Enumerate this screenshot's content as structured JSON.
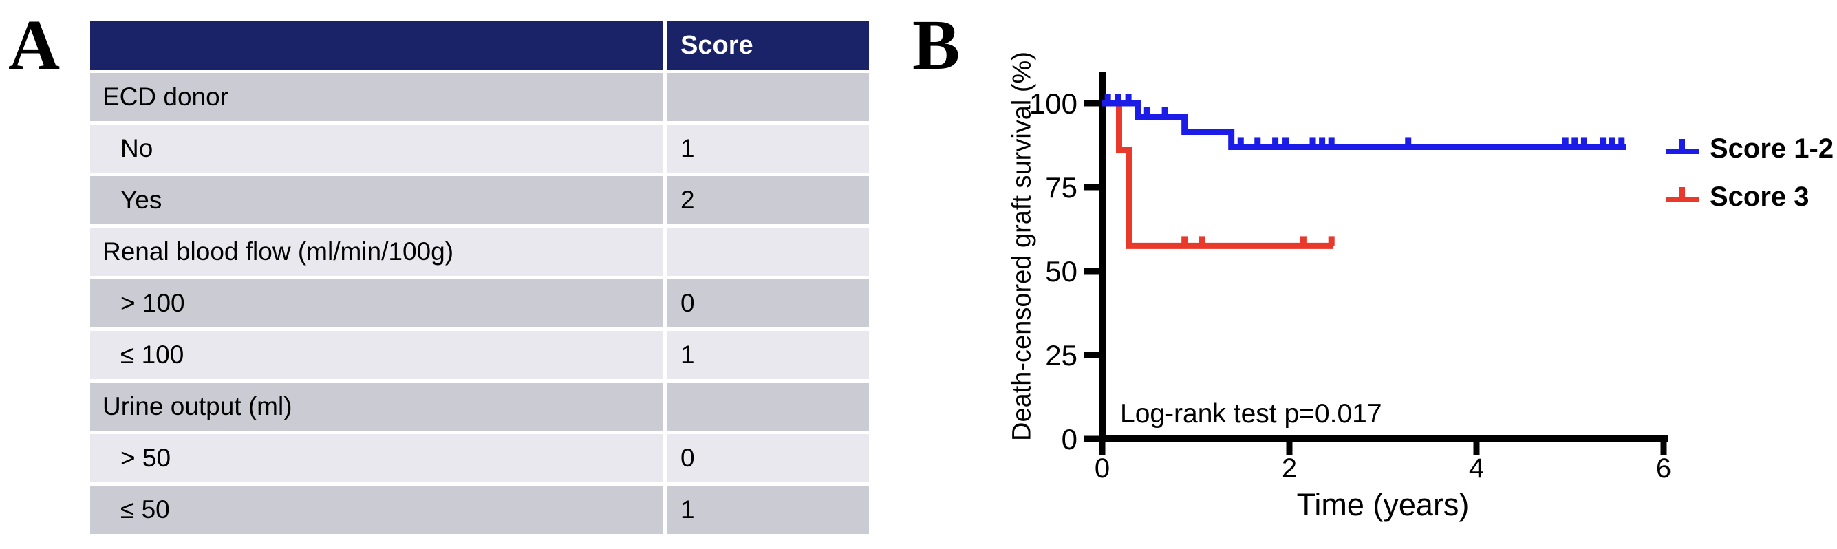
{
  "panels": {
    "a_label": "A",
    "b_label": "B"
  },
  "table": {
    "header": {
      "col1": "",
      "col2": "Score"
    },
    "rows": [
      {
        "label": "ECD donor",
        "score": "",
        "indent": false,
        "shade": "dark"
      },
      {
        "label": "No",
        "score": "1",
        "indent": true,
        "shade": "light"
      },
      {
        "label": "Yes",
        "score": "2",
        "indent": true,
        "shade": "dark"
      },
      {
        "label": "Renal blood flow (ml/min/100g)",
        "score": "",
        "indent": false,
        "shade": "light"
      },
      {
        "label": "> 100",
        "score": "0",
        "indent": true,
        "shade": "dark"
      },
      {
        "label": "≤ 100",
        "score": "1",
        "indent": true,
        "shade": "light"
      },
      {
        "label": "Urine output (ml)",
        "score": "",
        "indent": false,
        "shade": "dark"
      },
      {
        "label": "> 50",
        "score": "0",
        "indent": true,
        "shade": "light"
      },
      {
        "label": "≤ 50",
        "score": "1",
        "indent": true,
        "shade": "dark"
      }
    ],
    "colors": {
      "header_bg": "#1b2368",
      "header_text": "#ffffff",
      "row_dark": "#cbccd3",
      "row_light": "#e8e8ee"
    }
  },
  "chart_data": {
    "type": "line",
    "subtype": "kaplan-meier-step",
    "title": "",
    "xlabel": "Time (years)",
    "ylabel": "Death-censored graft survival (%)",
    "x_ticks": [
      0,
      2,
      4,
      6
    ],
    "y_ticks": [
      0,
      25,
      50,
      75,
      100
    ],
    "xlim": [
      0,
      6
    ],
    "ylim": [
      0,
      100
    ],
    "grid": "off",
    "legend_position": "right",
    "annotation": "Log-rank test p=0.017",
    "axis_color": "#000000",
    "series": [
      {
        "name": "Score 1-2",
        "color": "#1c1ce8",
        "steps": [
          [
            0,
            100
          ],
          [
            0.38,
            100
          ],
          [
            0.38,
            96
          ],
          [
            0.88,
            96
          ],
          [
            0.88,
            91.5
          ],
          [
            1.38,
            91.5
          ],
          [
            1.38,
            87
          ],
          [
            5.6,
            87
          ]
        ],
        "censors": [
          [
            0.06,
            100
          ],
          [
            0.17,
            100
          ],
          [
            0.28,
            100
          ],
          [
            0.48,
            96
          ],
          [
            0.67,
            96
          ],
          [
            1.48,
            87
          ],
          [
            1.66,
            87
          ],
          [
            1.85,
            87
          ],
          [
            1.96,
            87
          ],
          [
            2.25,
            87
          ],
          [
            2.35,
            87
          ],
          [
            2.45,
            87
          ],
          [
            3.27,
            87
          ],
          [
            4.95,
            87
          ],
          [
            5.05,
            87
          ],
          [
            5.15,
            87
          ],
          [
            5.35,
            87
          ],
          [
            5.45,
            87
          ],
          [
            5.55,
            87
          ]
        ]
      },
      {
        "name": "Score 3",
        "color": "#e9392b",
        "steps": [
          [
            0,
            100
          ],
          [
            0.18,
            100
          ],
          [
            0.18,
            86
          ],
          [
            0.29,
            86
          ],
          [
            0.29,
            57.5
          ],
          [
            2.47,
            57.5
          ]
        ],
        "censors": [
          [
            0.88,
            57.5
          ],
          [
            1.07,
            57.5
          ],
          [
            2.15,
            57.5
          ],
          [
            2.45,
            57.5
          ]
        ]
      }
    ]
  }
}
